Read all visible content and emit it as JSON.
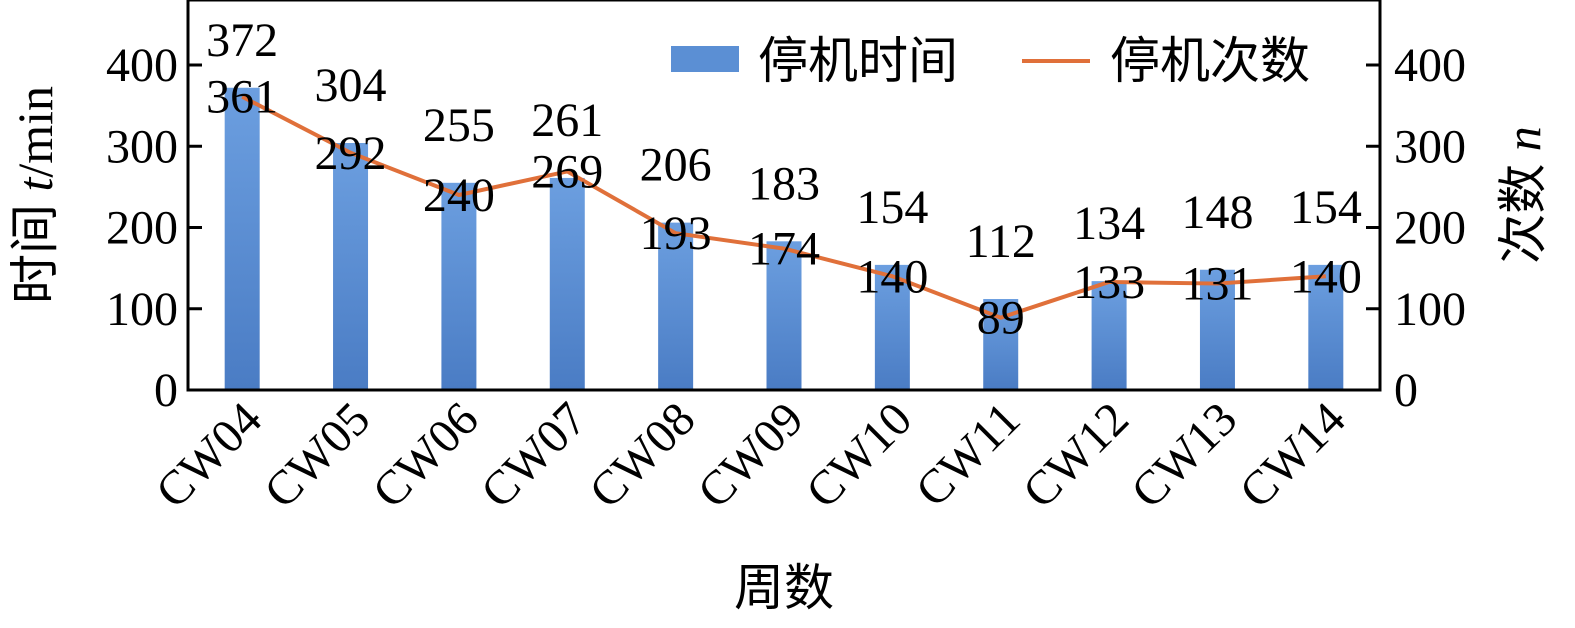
{
  "chart_data": {
    "type": "bar",
    "categories": [
      "CW04",
      "CW05",
      "CW06",
      "CW07",
      "CW08",
      "CW09",
      "CW10",
      "CW11",
      "CW12",
      "CW13",
      "CW14"
    ],
    "series": [
      {
        "name": "停机时间",
        "type": "bar",
        "axis": "left",
        "color": "#5b8fd4",
        "values": [
          372,
          304,
          255,
          261,
          206,
          183,
          154,
          112,
          134,
          148,
          154
        ]
      },
      {
        "name": "停机次数",
        "type": "line",
        "axis": "right",
        "color": "#e0703a",
        "values": [
          361,
          292,
          240,
          269,
          193,
          174,
          140,
          89,
          133,
          131,
          140
        ]
      }
    ],
    "xlabel": "周数",
    "ylabel": {
      "prefix": "时间 ",
      "var": "t",
      "suffix": "/min"
    },
    "y2label": {
      "prefix": "次数 ",
      "var": "n"
    },
    "ylim": [
      0,
      400
    ],
    "y2lim": [
      0,
      400
    ],
    "yticks": [
      0,
      100,
      200,
      300,
      400
    ],
    "y2ticks": [
      0,
      100,
      200,
      300,
      400
    ],
    "legend_position": "top-right",
    "grid": false
  }
}
